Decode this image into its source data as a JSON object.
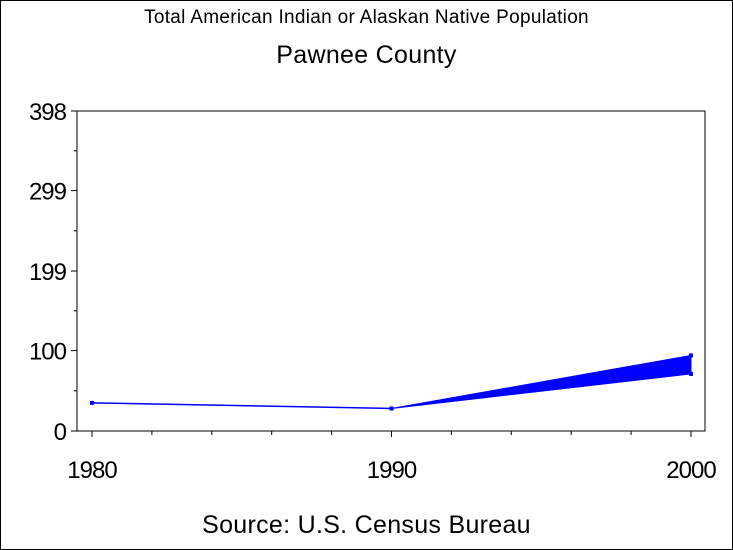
{
  "header": {
    "title": "Total American Indian or Alaskan Native Population",
    "subtitle": "Pawnee County"
  },
  "footer": {
    "source": "Source: U.S. Census Bureau"
  },
  "chart_data": {
    "type": "line",
    "title": "Total American Indian or Alaskan Native Population",
    "subtitle": "Pawnee County",
    "x": [
      1980,
      1990,
      2000
    ],
    "x_tick_labels": [
      "1980",
      "1990",
      "2000"
    ],
    "y_tick_labels": [
      "0",
      "100",
      "199",
      "299",
      "398"
    ],
    "y_ticks": [
      0,
      100,
      199,
      299,
      398
    ],
    "xlim": [
      1980,
      2000
    ],
    "ylim": [
      0,
      398
    ],
    "series": [
      {
        "values": [
          35,
          28,
          94
        ]
      }
    ],
    "band_2000": [
      71,
      94
    ],
    "line_color": "#0000ff",
    "grid": false,
    "source": "Source: U.S. Census Bureau"
  }
}
